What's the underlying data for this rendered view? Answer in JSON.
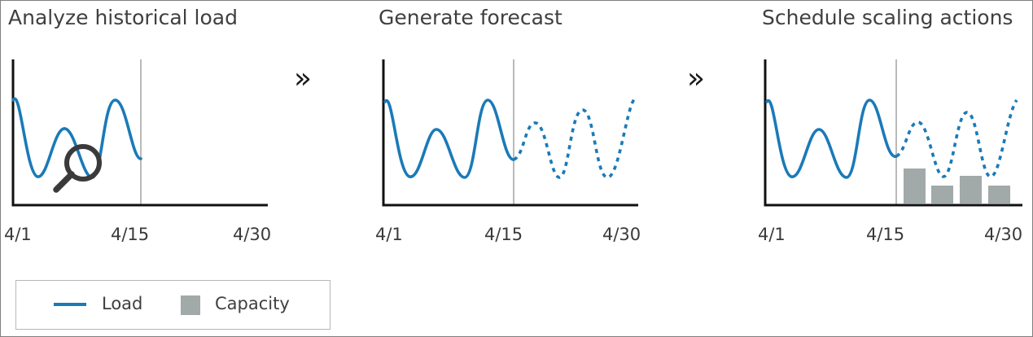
{
  "steps": [
    {
      "title": "Analyze historical load",
      "ticks": [
        "4/1",
        "4/15",
        "4/30"
      ]
    },
    {
      "title": "Generate forecast",
      "ticks": [
        "4/1",
        "4/15",
        "4/30"
      ]
    },
    {
      "title": "Schedule scaling actions",
      "ticks": [
        "4/1",
        "4/15",
        "4/30"
      ]
    }
  ],
  "separator_symbol": "»",
  "legend": {
    "load_label": "Load",
    "capacity_label": "Capacity"
  },
  "colors": {
    "load": "#1a7ab8",
    "capacity": "#a1a9a9",
    "axis": "#111111",
    "divider": "#8c8c8c"
  },
  "icons": {
    "analyze": "magnifier-icon"
  }
}
